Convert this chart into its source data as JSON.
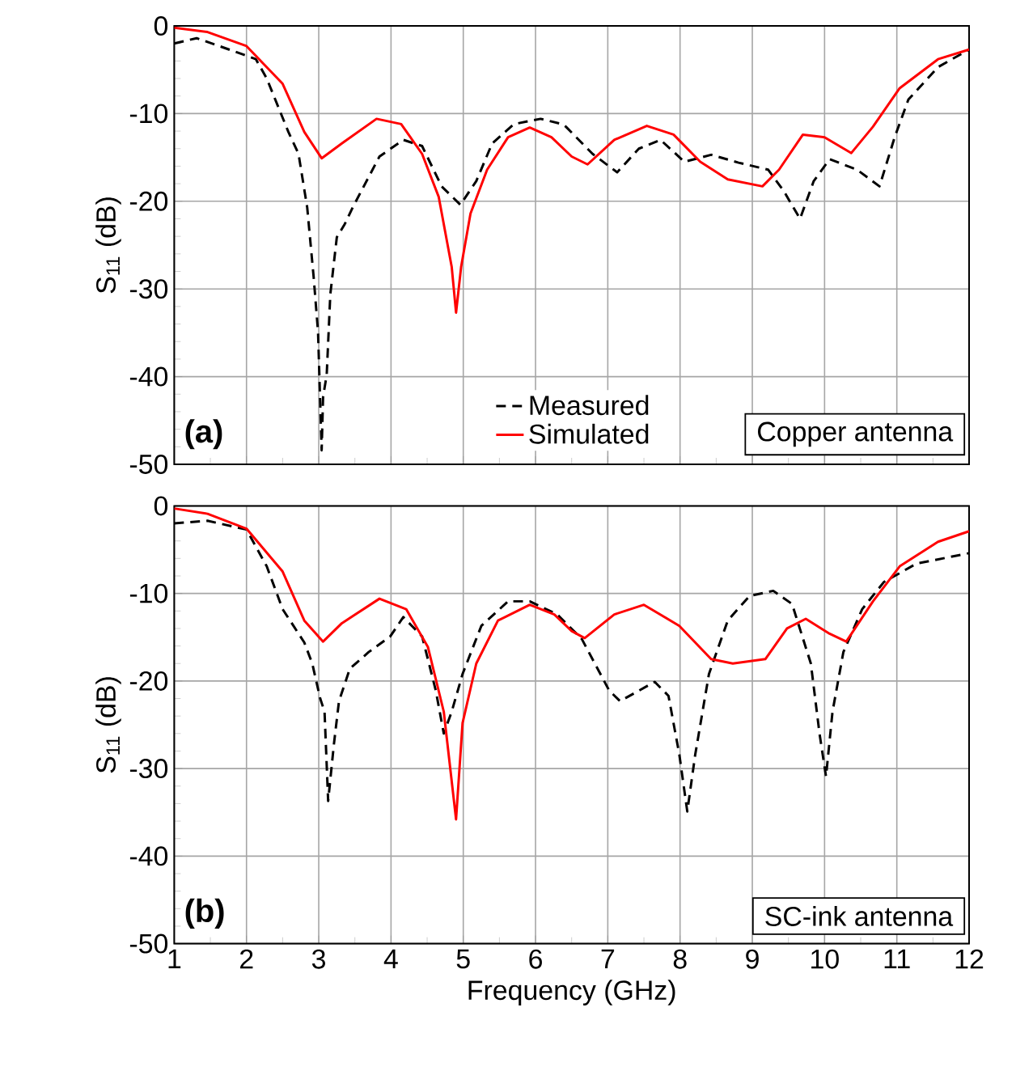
{
  "chart_data": [
    {
      "type": "line",
      "ylabel": "S$_{11}$ (dB)",
      "xlim": [
        1,
        12
      ],
      "ylim": [
        -50,
        0
      ],
      "xticks": [
        1,
        2,
        3,
        4,
        5,
        6,
        7,
        8,
        9,
        10,
        11,
        12
      ],
      "yticks": [
        -50,
        -40,
        -30,
        -20,
        -10,
        0
      ],
      "grid": true,
      "tick_labels": "y",
      "legend": "bottom",
      "annotations": [
        "(a)",
        "Copper antenna"
      ],
      "series": [
        {
          "name": "Measured",
          "color": "#000000",
          "line_style": "dashed",
          "x": [
            1,
            1.31,
            1.83,
            2.13,
            2.28,
            2.58,
            2.72,
            2.84,
            2.93,
            2.99,
            3.04,
            3.06,
            3.11,
            3.16,
            3.25,
            3.36,
            3.47,
            3.84,
            4.17,
            4.43,
            4.7,
            4.96,
            5.18,
            5.4,
            5.7,
            6.07,
            6.37,
            6.42,
            6.79,
            7.13,
            7.43,
            7.73,
            8.06,
            8.43,
            8.81,
            9.22,
            9.44,
            9.66,
            9.85,
            10.07,
            10.45,
            10.76,
            10.97,
            11.16,
            11.57,
            12
          ],
          "values": [
            -2.0,
            -1.4,
            -2.9,
            -3.8,
            -6.0,
            -12.1,
            -14.6,
            -20.7,
            -28.7,
            -34.9,
            -48.4,
            -42.3,
            -39.8,
            -30.6,
            -24.1,
            -22.6,
            -20.7,
            -14.9,
            -13.0,
            -13.7,
            -18.3,
            -20.4,
            -17.7,
            -13.4,
            -11.2,
            -10.6,
            -11.2,
            -11.5,
            -14.6,
            -16.7,
            -14.0,
            -13.0,
            -15.5,
            -14.7,
            -15.6,
            -16.4,
            -18.9,
            -22.0,
            -17.7,
            -15.2,
            -16.4,
            -18.3,
            -12.7,
            -8.4,
            -4.7,
            -2.7
          ]
        },
        {
          "name": "Simulated",
          "color": "#ff0000",
          "line_style": "solid",
          "x": [
            1,
            1.46,
            2.0,
            2.5,
            2.8,
            3.04,
            3.32,
            3.8,
            4.14,
            4.43,
            4.66,
            4.84,
            4.9,
            4.97,
            5.1,
            5.33,
            5.62,
            5.92,
            6.22,
            6.5,
            6.72,
            7.09,
            7.54,
            7.91,
            8.28,
            8.66,
            9.14,
            9.37,
            9.7,
            10.0,
            10.37,
            10.67,
            11.04,
            11.57,
            12
          ],
          "values": [
            -0.2,
            -0.7,
            -2.3,
            -6.6,
            -12.1,
            -15.1,
            -13.4,
            -10.6,
            -11.2,
            -14.6,
            -19.5,
            -27.5,
            -32.7,
            -27.5,
            -21.4,
            -16.4,
            -12.7,
            -11.6,
            -12.7,
            -14.9,
            -15.8,
            -13.0,
            -11.4,
            -12.4,
            -15.5,
            -17.5,
            -18.3,
            -16.4,
            -12.4,
            -12.7,
            -14.5,
            -11.5,
            -7.1,
            -3.8,
            -2.7
          ]
        }
      ]
    },
    {
      "type": "line",
      "xlabel": "Frequency (GHz)",
      "ylabel": "S$_{11}$ (dB)",
      "xlim": [
        1,
        12
      ],
      "ylim": [
        -50,
        0
      ],
      "xticks": [
        1,
        2,
        3,
        4,
        5,
        6,
        7,
        8,
        9,
        10,
        11,
        12
      ],
      "yticks": [
        -50,
        -40,
        -30,
        -20,
        -10,
        0
      ],
      "grid": true,
      "annotations": [
        "(b)",
        "SC-ink antenna"
      ],
      "series": [
        {
          "color": "#000000",
          "line_style": "dashed",
          "x": [
            1,
            1.46,
            2.0,
            2.28,
            2.5,
            2.65,
            2.8,
            2.91,
            3.02,
            3.08,
            3.13,
            3.21,
            3.28,
            3.43,
            3.69,
            3.99,
            4.17,
            4.43,
            4.62,
            4.73,
            4.84,
            4.99,
            5.25,
            5.62,
            5.92,
            6.3,
            6.64,
            7.02,
            7.17,
            7.43,
            7.65,
            7.84,
            7.99,
            8.1,
            8.21,
            8.4,
            8.66,
            8.96,
            9.29,
            9.55,
            9.81,
            9.93,
            10.02,
            10.11,
            10.26,
            10.52,
            10.82,
            11.27,
            12
          ],
          "values": [
            -2.0,
            -1.7,
            -2.7,
            -6.9,
            -11.8,
            -13.7,
            -15.6,
            -18.0,
            -22.0,
            -23.5,
            -33.7,
            -27.2,
            -22.3,
            -18.6,
            -16.7,
            -14.9,
            -12.7,
            -14.9,
            -21.1,
            -26.0,
            -23.5,
            -19.2,
            -13.7,
            -10.9,
            -10.9,
            -12.4,
            -15.2,
            -21.1,
            -22.3,
            -21.1,
            -20.1,
            -21.7,
            -28.4,
            -34.9,
            -28.4,
            -19.2,
            -13.1,
            -10.3,
            -9.7,
            -11.2,
            -18.0,
            -26.0,
            -30.9,
            -23.5,
            -16.7,
            -11.8,
            -8.7,
            -6.6,
            -5.4
          ]
        },
        {
          "color": "#ff0000",
          "line_style": "solid",
          "x": [
            1,
            1.46,
            2.0,
            2.5,
            2.8,
            3.06,
            3.32,
            3.84,
            4.21,
            4.51,
            4.73,
            4.9,
            4.99,
            5.18,
            5.48,
            5.92,
            6.26,
            6.5,
            6.68,
            7.09,
            7.5,
            7.99,
            8.43,
            8.73,
            9.18,
            9.48,
            9.74,
            10.07,
            10.3,
            10.67,
            11.04,
            11.57,
            12
          ],
          "values": [
            -0.3,
            -0.9,
            -2.6,
            -7.5,
            -13.1,
            -15.5,
            -13.4,
            -10.6,
            -11.8,
            -16.1,
            -23.5,
            -35.8,
            -24.8,
            -18.0,
            -13.1,
            -11.3,
            -12.4,
            -14.3,
            -15.1,
            -12.4,
            -11.3,
            -13.7,
            -17.5,
            -18.0,
            -17.5,
            -14.0,
            -12.9,
            -14.6,
            -15.5,
            -10.9,
            -6.9,
            -4.1,
            -2.9
          ]
        }
      ]
    }
  ]
}
